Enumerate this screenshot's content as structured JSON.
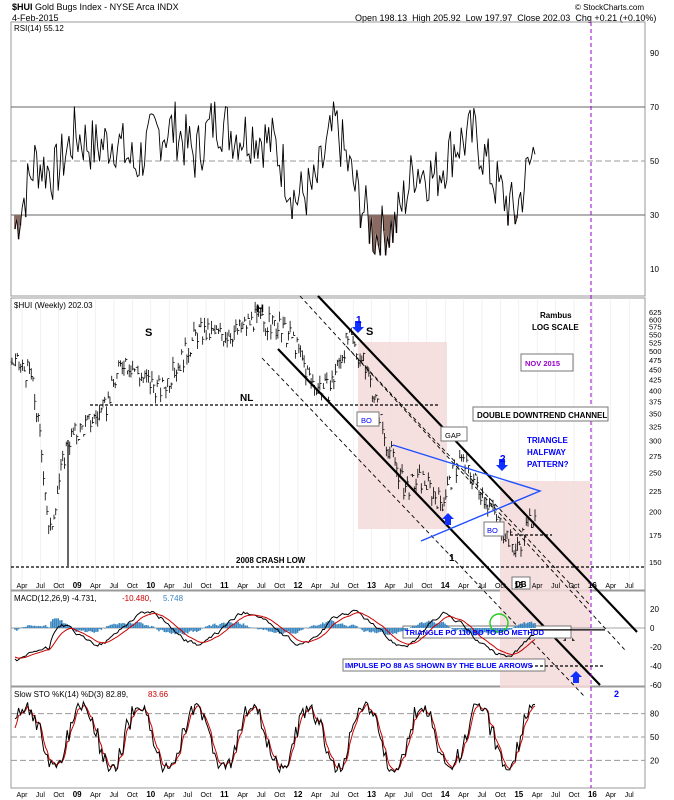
{
  "header": {
    "symbol": "$HUI",
    "name": "Gold Bugs Index - NYSE Arca INDX",
    "date": "4-Feb-2015",
    "open_label": "Open",
    "open": "198.13",
    "high_label": "High",
    "high": "205.92",
    "low_label": "Low",
    "low": "197.97",
    "close_label": "Close",
    "close": "202.03",
    "chg_label": "Chg",
    "chg": "+0.21 (+0.10%)",
    "watermark": "© StockCharts.com"
  },
  "chart_data": [
    {
      "type": "line",
      "title": "RSI(14) 55.12",
      "ylim": [
        0,
        100
      ],
      "y_ticks": [
        10,
        30,
        50,
        70,
        90
      ],
      "reference_lines": [
        30,
        50,
        70
      ],
      "x": [
        "2008-10",
        "2009-01",
        "2009-04",
        "2009-07",
        "2009-10",
        "2010-01",
        "2010-04",
        "2010-07",
        "2010-10",
        "2011-01",
        "2011-04",
        "2011-07",
        "2011-10",
        "2012-01",
        "2012-04",
        "2012-07",
        "2012-10",
        "2013-01",
        "2013-04",
        "2013-07",
        "2013-10",
        "2014-01",
        "2014-04",
        "2014-07",
        "2014-10",
        "2015-01",
        "2015-02"
      ],
      "values": [
        25,
        50,
        45,
        60,
        55,
        58,
        48,
        60,
        62,
        52,
        66,
        60,
        60,
        56,
        36,
        40,
        64,
        40,
        22,
        26,
        48,
        44,
        56,
        60,
        42,
        30,
        55
      ],
      "fill_below": 30
    },
    {
      "type": "line",
      "title": "$HUI (Weekly) 202.03",
      "scale": "log",
      "ylim": [
        140,
        640
      ],
      "y_ticks": [
        150,
        175,
        200,
        225,
        250,
        275,
        300,
        325,
        350,
        375,
        400,
        425,
        450,
        475,
        500,
        525,
        550,
        575,
        600,
        625
      ],
      "x_ticks": [
        "Apr",
        "Jul",
        "Oct",
        "09",
        "Apr",
        "Jul",
        "Oct",
        "10",
        "Apr",
        "Jul",
        "Oct",
        "11",
        "Apr",
        "Jul",
        "Oct",
        "12",
        "Apr",
        "Jul",
        "Oct",
        "13",
        "Apr",
        "Jul",
        "Oct",
        "14",
        "Apr",
        "Jul",
        "Oct",
        "15",
        "Apr",
        "Jul",
        "Oct",
        "16",
        "Apr",
        "Jul"
      ],
      "x": [
        "2008-04",
        "2008-07",
        "2008-10",
        "2009-01",
        "2009-04",
        "2009-07",
        "2009-10",
        "2010-01",
        "2010-04",
        "2010-07",
        "2010-10",
        "2011-01",
        "2011-04",
        "2011-07",
        "2011-10",
        "2012-01",
        "2012-04",
        "2012-07",
        "2012-10",
        "2013-01",
        "2013-04",
        "2013-07",
        "2013-10",
        "2014-01",
        "2014-04",
        "2014-07",
        "2014-10",
        "2015-01",
        "2015-02"
      ],
      "values": [
        470,
        440,
        170,
        300,
        330,
        360,
        480,
        430,
        400,
        470,
        560,
        550,
        560,
        600,
        580,
        540,
        420,
        400,
        540,
        450,
        300,
        230,
        240,
        210,
        270,
        230,
        190,
        160,
        202
      ],
      "annotations": [
        "S",
        "H",
        "S",
        "1",
        "1",
        "2",
        "NL",
        "BO",
        "GAP",
        "BO",
        "DB",
        "2008 CRASH LOW",
        "DOUBLE DOWNTREND CHANNEL",
        "TRIANGLE HALFWAY PATTERN?",
        "NOV 2015",
        "Rambus",
        "LOG SCALE"
      ]
    },
    {
      "type": "line",
      "title": "MACD(12,26,9) -4.731, -10.480, 5.748",
      "ylim": [
        -60,
        30
      ],
      "y_ticks": [
        20,
        0,
        -20,
        -40,
        -60
      ],
      "annotations": [
        "TRIANGLE PO 110 BO TO BO METHOD",
        "IMPULSE PO 88 AS SHOWN BY THE BLUE ARROWS",
        "2"
      ]
    },
    {
      "type": "line",
      "title": "Slow STO %K(14) %D(3) 82.89, 83.66",
      "ylim": [
        0,
        100
      ],
      "y_ticks": [
        20,
        50,
        80
      ],
      "reference_lines": [
        20,
        50,
        80
      ]
    }
  ],
  "panels": {
    "rsi": {
      "label": "RSI(14)",
      "value": "55.12",
      "y_labels": [
        "90",
        "70",
        "50",
        "30",
        "10"
      ]
    },
    "price": {
      "label": "$HUI (Weekly)",
      "value": "202.03",
      "y_labels": [
        "625",
        "600",
        "575",
        "550",
        "525",
        "500",
        "475",
        "450",
        "425",
        "400",
        "375",
        "350",
        "325",
        "300",
        "275",
        "250",
        "225",
        "200",
        "175",
        "150"
      ],
      "x_labels": [
        "Apr",
        "Jul",
        "Oct",
        "09",
        "Apr",
        "Jul",
        "Oct",
        "10",
        "Apr",
        "Jul",
        "Oct",
        "11",
        "Apr",
        "Jul",
        "Oct",
        "12",
        "Apr",
        "Jul",
        "Oct",
        "13",
        "Apr",
        "Jul",
        "Oct",
        "14",
        "Apr",
        "Jul",
        "Oct",
        "15",
        "Apr",
        "Jul",
        "Oct",
        "16",
        "Apr",
        "Jul"
      ],
      "labels": {
        "s_left": "S",
        "head": "H",
        "s_right": "S",
        "arrow1_top": "1",
        "arrow1_bottom": "1",
        "arrow2": "2",
        "neckline": "NL",
        "bo1": "BO",
        "gap": "GAP",
        "bo2": "BO",
        "db": "DB",
        "crash_low": "2008 CRASH LOW",
        "channel": "DOUBLE DOWNTREND CHANNEL",
        "triangle_l1": "TRIANGLE",
        "triangle_l2": "HALFWAY",
        "triangle_l3": "PATTERN?",
        "nov": "NOV 2015",
        "rambus": "Rambus",
        "logscale": "LOG SCALE"
      }
    },
    "macd": {
      "label": "MACD(12,26,9)",
      "v1": "-4.731,",
      "v2": "-10.480,",
      "v3": "5.748",
      "y_labels": [
        "20",
        "0",
        "-20",
        "-40",
        "-60"
      ],
      "labels": {
        "triangle_po": "TRIANGLE PO 110 BO TO BO METHOD",
        "impulse_po": "IMPULSE PO 88 AS SHOWN BY THE BLUE ARROWS",
        "two": "2"
      }
    },
    "sto": {
      "label": "Slow STO %K(14) %D(3)",
      "v1": "82.89,",
      "v2": "83.66",
      "y_labels": [
        "80",
        "50",
        "20"
      ],
      "x_labels": [
        "Apr",
        "Jul",
        "Oct",
        "09",
        "Apr",
        "Jul",
        "Oct",
        "10",
        "Apr",
        "Jul",
        "Oct",
        "11",
        "Apr",
        "Jul",
        "Oct",
        "12",
        "Apr",
        "Jul",
        "Oct",
        "13",
        "Apr",
        "Jul",
        "Oct",
        "14",
        "Apr",
        "Jul",
        "Oct",
        "15",
        "Apr",
        "Jul",
        "Oct",
        "16",
        "Apr",
        "Jul"
      ]
    }
  },
  "colors": {
    "blue_text": "#0000ff",
    "purple": "#9900cc",
    "pink_zone": "#f3d9d9",
    "macd_hist": "#3a86c0",
    "red_signal": "#cc0000",
    "rsi_fill": "#8b6a62"
  }
}
